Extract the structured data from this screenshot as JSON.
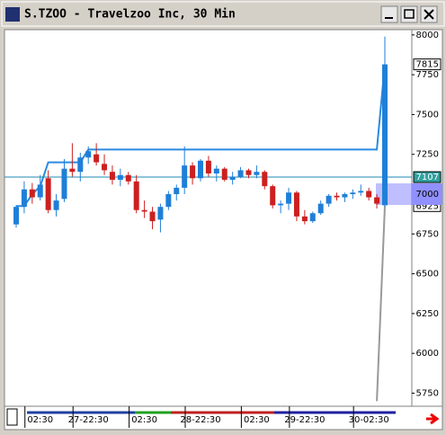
{
  "window_title": "S.TZOO - Travelzoo Inc, 30 Min",
  "chart_data": {
    "type": "candlestick",
    "categories": [
      null,
      null,
      null,
      "02:30",
      null,
      null,
      null,
      null,
      null,
      "27-22:30",
      null,
      null,
      null,
      null,
      null,
      null,
      "02:30",
      null,
      null,
      null,
      null,
      null,
      null,
      "28-22:30",
      null,
      null,
      null,
      null,
      null,
      null,
      "02:30",
      null,
      null,
      null,
      null,
      null,
      "29-22:30",
      null,
      null,
      null,
      null,
      null,
      null,
      null,
      "30-02:30",
      null,
      null
    ],
    "series": [
      {
        "up_color": "#1f7fd8",
        "down_color": "#cc2020",
        "open": [
          6810,
          6920,
          7030,
          6980,
          7100,
          6900,
          6970,
          7160,
          7140,
          7230,
          7250,
          7190,
          7140,
          7090,
          7120,
          7080,
          6900,
          6890,
          6840,
          6920,
          7000,
          7040,
          7180,
          7100,
          7210,
          7130,
          7160,
          7090,
          7110,
          7150,
          7120,
          7140,
          7050,
          6930,
          6940,
          7010,
          6860,
          6830,
          6880,
          6940,
          6990,
          6980,
          7000,
          7010,
          7020,
          6980,
          6930
        ],
        "high": [
          6930,
          7080,
          7070,
          7120,
          7150,
          7000,
          7220,
          7320,
          7260,
          7300,
          7320,
          7250,
          7180,
          7160,
          7140,
          7120,
          6960,
          6920,
          6940,
          7020,
          7060,
          7300,
          7200,
          7220,
          7240,
          7180,
          7170,
          7140,
          7170,
          7160,
          7180,
          7150,
          7060,
          6960,
          7040,
          7020,
          6900,
          6890,
          6960,
          7000,
          7010,
          7010,
          7030,
          7060,
          7040,
          7000,
          7990
        ],
        "low": [
          6790,
          6880,
          6940,
          6960,
          6880,
          6860,
          6950,
          7110,
          7080,
          7190,
          7180,
          7120,
          7060,
          7050,
          7060,
          6880,
          6850,
          6780,
          6760,
          6900,
          6960,
          7000,
          7060,
          7080,
          7110,
          7080,
          7080,
          7060,
          7100,
          7100,
          7100,
          7030,
          6910,
          6880,
          6900,
          6830,
          6810,
          6820,
          6870,
          6920,
          6960,
          6950,
          6970,
          6990,
          6960,
          6910,
          6920
        ],
        "close": [
          6920,
          7030,
          6980,
          7060,
          6900,
          6960,
          7160,
          7140,
          7230,
          7270,
          7200,
          7150,
          7090,
          7120,
          7080,
          6900,
          6890,
          6830,
          6920,
          7000,
          7040,
          7180,
          7100,
          7210,
          7130,
          7160,
          7090,
          7110,
          7150,
          7120,
          7140,
          7050,
          6930,
          6940,
          7010,
          6860,
          6830,
          6880,
          6940,
          6990,
          6980,
          7000,
          7010,
          7020,
          6980,
          6940,
          7815
        ]
      }
    ],
    "upper_band": {
      "color": "#2a8ae0",
      "values": [
        6925,
        6925,
        7000,
        7050,
        7200,
        7200,
        7200,
        7200,
        7200,
        7280,
        7280,
        7280,
        7280,
        7280,
        7280,
        7280,
        7280,
        7280,
        7280,
        7280,
        7280,
        7280,
        7280,
        7280,
        7280,
        7280,
        7280,
        7280,
        7280,
        7280,
        7280,
        7280,
        7280,
        7280,
        7280,
        7280,
        7280,
        7280,
        7280,
        7280,
        7280,
        7280,
        7280,
        7280,
        7280,
        7280,
        7815
      ]
    },
    "lower_band": {
      "color": "#999999",
      "values": [
        null,
        null,
        null,
        null,
        null,
        null,
        null,
        null,
        null,
        null,
        null,
        null,
        null,
        null,
        null,
        null,
        null,
        null,
        null,
        null,
        null,
        null,
        null,
        null,
        null,
        null,
        null,
        null,
        null,
        null,
        null,
        null,
        null,
        null,
        null,
        null,
        null,
        null,
        null,
        null,
        null,
        null,
        null,
        null,
        null,
        5700,
        6925
      ]
    },
    "price_lines": [
      {
        "value": 7815,
        "label": "7815"
      },
      {
        "value": 7107,
        "label": "7107"
      },
      {
        "value": 6925,
        "label": "6925"
      }
    ],
    "cursor_price": 7000,
    "ylim": [
      5668,
      8033
    ],
    "yticks": [
      5750,
      6000,
      6250,
      6500,
      6750,
      7000,
      7250,
      7500,
      7750,
      8000
    ]
  }
}
